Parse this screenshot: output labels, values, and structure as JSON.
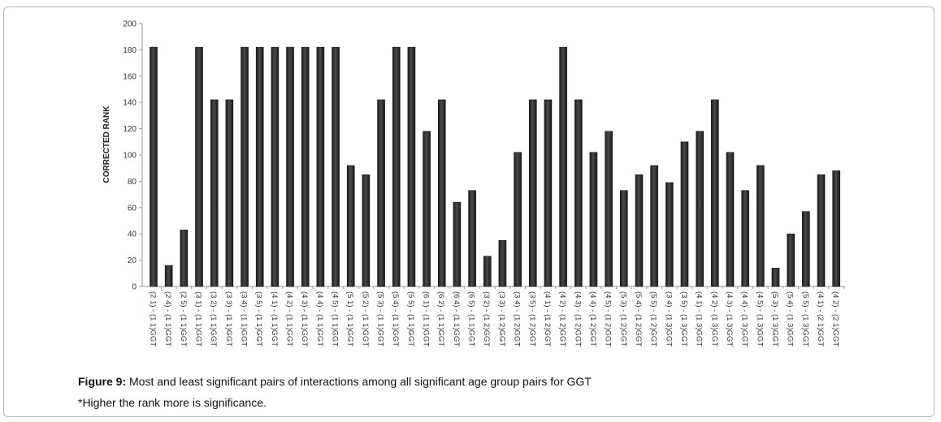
{
  "chart_data": {
    "type": "bar",
    "title": "",
    "xlabel": "",
    "ylabel": "CORRECTED RANK",
    "ylim": [
      0,
      200
    ],
    "yticks": [
      0,
      20,
      40,
      60,
      80,
      100,
      120,
      140,
      160,
      180,
      200
    ],
    "grid": false,
    "legend": "none",
    "bar_color": "#2a2a2a",
    "categories": [
      "(2 1) - (1 1)GGT",
      "(2 4) - (1 1)GGT",
      "(2 5) - (1 1)GGT",
      "(3 1) - (1 1)GGT",
      "(3 2) - (1 1)GGT",
      "(3 3) - (1 1)GGT",
      "(3 4) - (1 1)GGT",
      "(3 5) - (1 1)GGT",
      "(4 1) - (1 1)GGT",
      "(4 2) - (1 1)GGT",
      "(4 3) - (1 1)GGT",
      "(4 4) - (1 1)GGT",
      "(4 5) - (1 1)GGT",
      "(5 1) - (1 1)GGT",
      "(5 2) - (1 1)GGT",
      "(5 3) - (1 1)GGT",
      "(5 4) - (1 1)GGT",
      "(5 5) - (1 1)GGT",
      "(6 1) - (1 1)GGT",
      "(6 2) - (1 1)GGT",
      "(6 4) - (1 1)GGT",
      "(6 5) - (1 1)GGT",
      "(3 2) - (1 2)GGT",
      "(3 3) - (1 2)GGT",
      "(3 4) - (1 2)GGT",
      "(3 5) - (1 2)GGT",
      "(4 1) - (1 2)GGT",
      "(4 2) - (1 2)GGT",
      "(4 3) - (1 2)GGT",
      "(4 4) - (1 2)GGT",
      "(4 5) - (1 2)GGT",
      "(5 3) - (1 2)GGT",
      "(5 4) - (1 2)GGT",
      "(5 5) - (1 2)GGT",
      "(3 4) - (1 3)GGT",
      "(3 5) - (1 3)GGT",
      "(4 1) - (1 3)GGT",
      "(4 2) - (1 3)GGT",
      "(4 3) - (1 3)GGT",
      "(4 4) - (1 3)GGT",
      "(4 5) - (1 3)GGT",
      "(5 3) - (1 3)GGT",
      "(5 4) - (1 3)GGT",
      "(5 5) - (1 3)GGT",
      "(4 1) - (2 1)GGT",
      "(4 2) - (2 1)GGT"
    ],
    "values": [
      182,
      16,
      43,
      182,
      142,
      142,
      182,
      182,
      182,
      182,
      182,
      182,
      182,
      92,
      85,
      142,
      182,
      182,
      118,
      142,
      64,
      73,
      23,
      35,
      102,
      142,
      142,
      182,
      142,
      102,
      118,
      73,
      85,
      92,
      79,
      110,
      118,
      142,
      102,
      73,
      92,
      14,
      40,
      57,
      85,
      88
    ]
  },
  "caption": {
    "label": "Figure 9:",
    "text": " Most and least significant pairs of interactions among all significant age group pairs for GGT",
    "note": "*Higher the rank more is significance."
  }
}
